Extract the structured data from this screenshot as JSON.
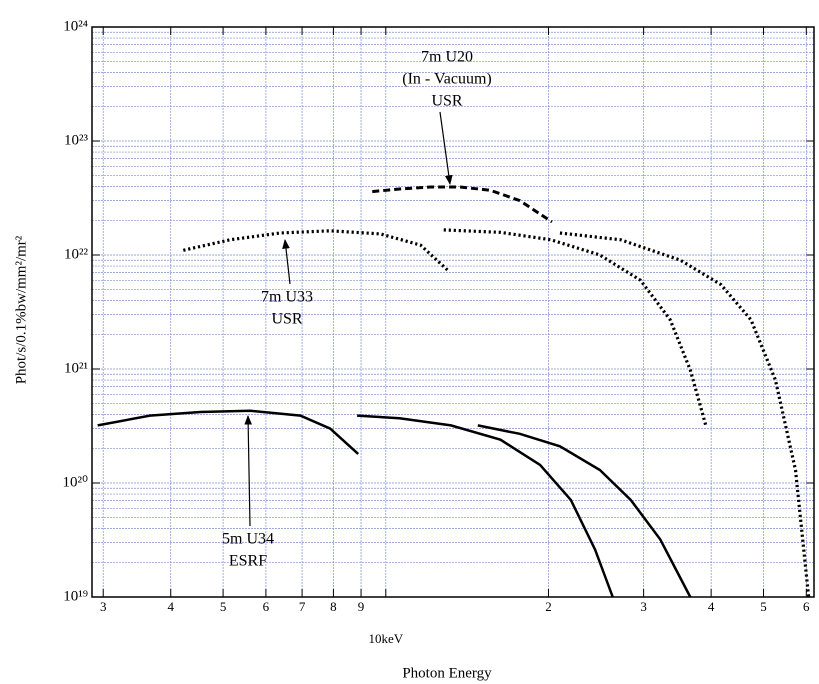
{
  "chart_data": {
    "type": "line",
    "xlabel": "Photon Energy",
    "ylabel": "Phot/s/0.1%bw/mm²/mr²",
    "xscale": "log",
    "yscale": "log",
    "grid": true,
    "xlim": [
      2.86,
      62
    ],
    "ylim": [
      1e+19,
      1e+24
    ],
    "xticks": [
      3,
      4,
      5,
      6,
      7,
      8,
      9,
      {
        "value": 10,
        "label": "10keV"
      },
      {
        "value": 20,
        "label": "2"
      },
      {
        "value": 30,
        "label": "3"
      },
      {
        "value": 40,
        "label": "4"
      },
      {
        "value": 50,
        "label": "5"
      },
      {
        "value": 60,
        "label": "6"
      }
    ],
    "yticks": [
      {
        "value": 1e+19,
        "label": "10¹⁹"
      },
      {
        "value": 1e+20,
        "label": "10²⁰"
      },
      {
        "value": 1e+21,
        "label": "10²¹"
      },
      {
        "value": 1e+22,
        "label": "10²²"
      },
      {
        "value": 1e+23,
        "label": "10²³"
      },
      {
        "value": 1e+24,
        "label": "10²⁴"
      }
    ],
    "yminorticks": [
      2e+19,
      3e+19,
      4e+19,
      5e+19,
      6e+19,
      7e+19,
      8e+19,
      9e+19,
      2e+20,
      3e+20,
      4e+20,
      5e+20,
      6e+20,
      7e+20,
      8e+20,
      9e+20,
      2e+21,
      3e+21,
      4e+21,
      5e+21,
      6e+21,
      7e+21,
      8e+21,
      9e+21,
      2e+22,
      3e+22,
      4e+22,
      5e+22,
      6e+22,
      7e+22,
      8e+22,
      9e+22,
      2e+23,
      3e+23,
      4e+23,
      5e+23,
      6e+23,
      7e+23,
      8e+23,
      9e+23
    ],
    "series": [
      {
        "color": "#000000",
        "style": "solid",
        "x": [
          2.93,
          3.66,
          4.54,
          5.61,
          6.95,
          7.89,
          8.89
        ],
        "values": [
          3.2e+20,
          3.9e+20,
          4.2e+20,
          4.3e+20,
          3.9e+20,
          3e+20,
          1.8e+20
        ]
      },
      {
        "color": "#000000",
        "style": "solid",
        "x": [
          8.85,
          10.6,
          13.2,
          16.3,
          19.3,
          22.0,
          24.4,
          26.3
        ],
        "values": [
          3.9e+20,
          3.7e+20,
          3.2e+20,
          2.4e+20,
          1.44e+20,
          7.1e+19,
          2.6e+19,
          1e+19
        ]
      },
      {
        "color": "#000000",
        "style": "solid",
        "x": [
          14.8,
          17.7,
          21.0,
          24.9,
          28.4,
          32.2,
          36.6
        ],
        "values": [
          3.2e+20,
          2.7e+20,
          2.1e+20,
          1.3e+20,
          7.1e+19,
          3.2e+19,
          1e+19
        ]
      },
      {
        "color": "#000000",
        "style": "dotted",
        "x": [
          4.22,
          5.15,
          6.38,
          7.89,
          9.78,
          11.6,
          13.0
        ],
        "values": [
          1.1e+22,
          1.36e+22,
          1.56e+22,
          1.63e+22,
          1.53e+22,
          1.22e+22,
          7.4e+21
        ]
      },
      {
        "color": "#000000",
        "style": "dotted",
        "x": [
          12.8,
          16.3,
          20.2,
          24.9,
          29.6,
          33.6,
          36.6,
          39.1
        ],
        "values": [
          1.66e+22,
          1.58e+22,
          1.36e+22,
          1e+22,
          6e+21,
          2.7e+21,
          9.8e+20,
          3.2e+20
        ]
      },
      {
        "color": "#000000",
        "style": "dotted",
        "x": [
          21.0,
          27.2,
          35.1,
          41.7,
          47.4,
          52.6,
          57.3,
          60.6
        ],
        "values": [
          1.56e+22,
          1.36e+22,
          9e+21,
          5.5e+21,
          2.7e+21,
          8e+20,
          1.3e+20,
          1e+19
        ]
      },
      {
        "color": "#000000",
        "style": "dashed",
        "x": [
          9.44,
          10.6,
          12.1,
          13.7,
          15.6,
          17.7,
          20.3
        ],
        "values": [
          3.6e+22,
          3.79e+22,
          3.95e+22,
          3.95e+22,
          3.7e+22,
          3e+22,
          1.95e+22
        ]
      }
    ],
    "annotations": [
      {
        "lines": [
          "7m U20",
          "(In - Vacuum)",
          "USR"
        ]
      },
      {
        "lines": [
          "7m U33",
          "USR"
        ]
      },
      {
        "lines": [
          "5m U34",
          "ESRF"
        ]
      }
    ]
  }
}
